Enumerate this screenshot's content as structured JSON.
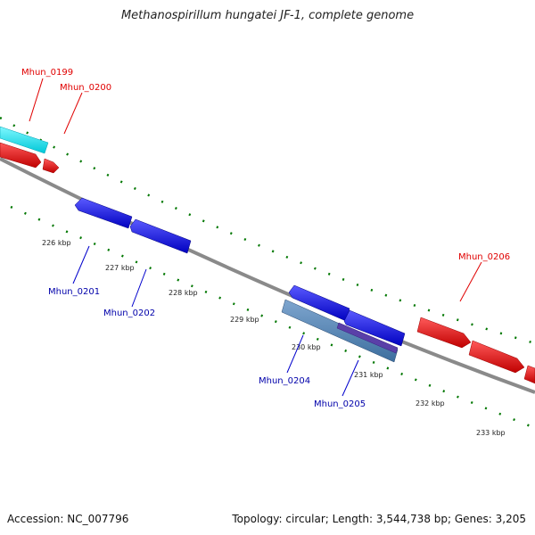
{
  "header": {
    "title": "Methanospirillum hungatei JF-1, complete genome"
  },
  "footer": {
    "accession": "Accession: NC_007796",
    "summary": "Topology: circular; Length: 3,544,738 bp; Genes: 3,205"
  },
  "colors": {
    "forward_gene": "#ff0000",
    "reverse_gene": "#0000ff",
    "cds_cyan": "#00e5ee",
    "backbone": "#888888",
    "tick": "#007700"
  },
  "ticks": [
    "226 kbp",
    "227 kbp",
    "228 kbp",
    "229 kbp",
    "230 kbp",
    "231 kbp",
    "232 kbp",
    "233 kbp"
  ],
  "genes": {
    "mhun_0199": "Mhun_0199",
    "mhun_0200": "Mhun_0200",
    "mhun_0201": "Mhun_0201",
    "mhun_0202": "Mhun_0202",
    "mhun_0204": "Mhun_0204",
    "mhun_0205": "Mhun_0205",
    "mhun_0206": "Mhun_0206"
  }
}
